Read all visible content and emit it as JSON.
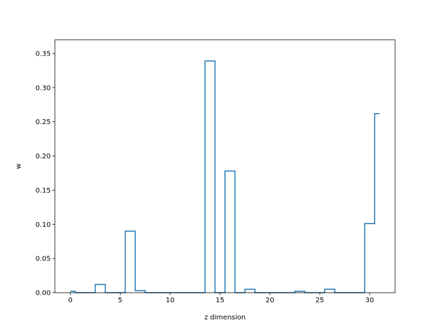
{
  "chart_data": {
    "type": "line",
    "style": "step",
    "xlabel": "z dimension",
    "ylabel": "w",
    "xlim": [
      -1.55,
      32.55
    ],
    "ylim": [
      0,
      0.37
    ],
    "xticks": [
      0,
      5,
      10,
      15,
      20,
      25,
      30
    ],
    "yticks": [
      0.0,
      0.05,
      0.1,
      0.15,
      0.2,
      0.25,
      0.3,
      0.35
    ],
    "ytick_labels": [
      "0.00",
      "0.05",
      "0.10",
      "0.15",
      "0.20",
      "0.25",
      "0.30",
      "0.35"
    ],
    "grid": false,
    "line_color": "#1f77b4",
    "series": [
      {
        "x": [
          0,
          1,
          2,
          3,
          4,
          5,
          6,
          7,
          8,
          9,
          10,
          11,
          12,
          13,
          14,
          15,
          16,
          17,
          18,
          19,
          20,
          21,
          22,
          23,
          24,
          25,
          26,
          27,
          28,
          29,
          30,
          31
        ],
        "values": [
          0.002,
          0.0,
          0.0,
          0.012,
          0.0,
          0.0,
          0.09,
          0.003,
          0.0,
          0.0,
          0.0,
          0.0,
          0.0,
          0.0,
          0.339,
          0.0,
          0.178,
          0.0,
          0.005,
          0.0,
          0.0,
          0.0,
          0.0,
          0.002,
          0.0,
          0.0,
          0.005,
          0.0,
          0.0,
          0.0,
          0.101,
          0.262
        ]
      }
    ]
  }
}
